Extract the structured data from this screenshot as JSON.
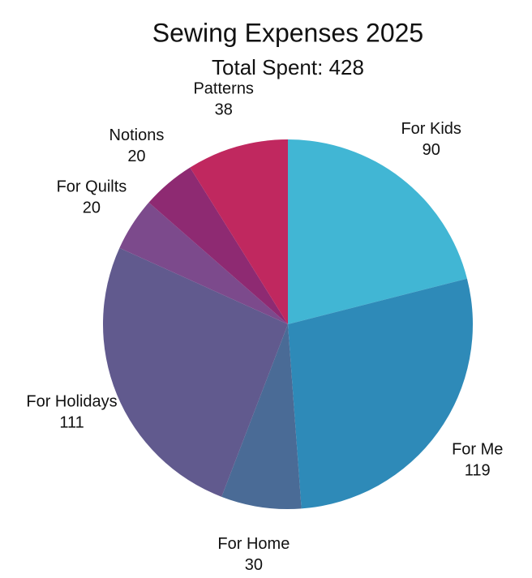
{
  "chart_data": {
    "type": "pie",
    "title": "Sewing Expenses 2025",
    "subtitle": "Total Spent: 428",
    "categories": [
      "For Kids",
      "For Me",
      "For Home",
      "For Holidays",
      "For Quilts",
      "Notions",
      "Patterns"
    ],
    "values": [
      90,
      119,
      30,
      111,
      20,
      20,
      38
    ],
    "colors": [
      "#41b6d4",
      "#2e8ab8",
      "#4a6b96",
      "#615a8e",
      "#7c4a8c",
      "#8e2a72",
      "#c0285f"
    ]
  }
}
